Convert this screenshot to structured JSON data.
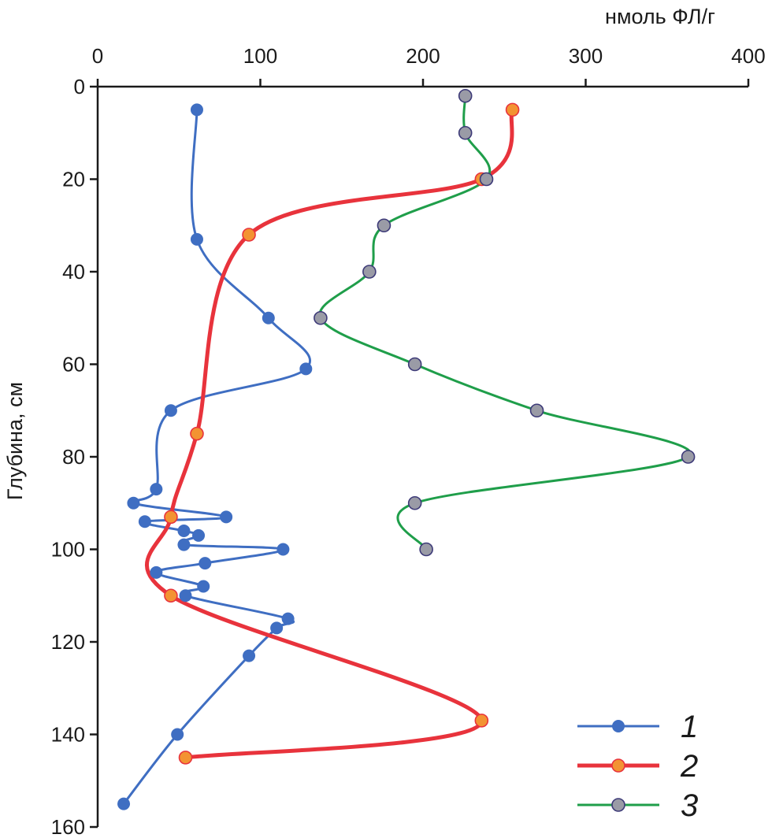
{
  "chart_data": {
    "type": "line",
    "title": "",
    "xlabel": "нмоль ФЛ/г",
    "ylabel": "Глубина, см",
    "x_axis_position": "top",
    "y_axis_inverted": true,
    "xlim": [
      0,
      400
    ],
    "ylim": [
      0,
      160
    ],
    "x_ticks": [
      0,
      100,
      200,
      300,
      400
    ],
    "y_ticks": [
      0,
      20,
      40,
      60,
      80,
      100,
      120,
      140,
      160
    ],
    "grid": false,
    "legend_position": "bottom-right",
    "series": [
      {
        "name": "1",
        "color": "#3f6ec2",
        "marker_color": "#3f6ec2",
        "smooth": true,
        "points": [
          {
            "x": 61,
            "y": 5
          },
          {
            "x": 61,
            "y": 33
          },
          {
            "x": 105,
            "y": 50
          },
          {
            "x": 128,
            "y": 61
          },
          {
            "x": 45,
            "y": 70
          },
          {
            "x": 36,
            "y": 87
          },
          {
            "x": 22,
            "y": 90
          },
          {
            "x": 79,
            "y": 93
          },
          {
            "x": 29,
            "y": 94
          },
          {
            "x": 53,
            "y": 96
          },
          {
            "x": 62,
            "y": 97
          },
          {
            "x": 53,
            "y": 99
          },
          {
            "x": 114,
            "y": 100
          },
          {
            "x": 66,
            "y": 103
          },
          {
            "x": 36,
            "y": 105
          },
          {
            "x": 65,
            "y": 108
          },
          {
            "x": 54,
            "y": 110
          },
          {
            "x": 117,
            "y": 115
          },
          {
            "x": 110,
            "y": 117
          },
          {
            "x": 93,
            "y": 123
          },
          {
            "x": 49,
            "y": 140
          },
          {
            "x": 16,
            "y": 155
          }
        ]
      },
      {
        "name": "2",
        "color": "#e8333c",
        "marker_color": "#f39332",
        "smooth": true,
        "points": [
          {
            "x": 255,
            "y": 5
          },
          {
            "x": 236,
            "y": 20
          },
          {
            "x": 93,
            "y": 32
          },
          {
            "x": 61,
            "y": 75
          },
          {
            "x": 45,
            "y": 93
          },
          {
            "x": 45,
            "y": 110
          },
          {
            "x": 236,
            "y": 137
          },
          {
            "x": 54,
            "y": 145
          }
        ]
      },
      {
        "name": "3",
        "color": "#1f9e4a",
        "marker_color": "#9a9ba6",
        "smooth": true,
        "points": [
          {
            "x": 226,
            "y": 2
          },
          {
            "x": 226,
            "y": 10
          },
          {
            "x": 239,
            "y": 20
          },
          {
            "x": 176,
            "y": 30
          },
          {
            "x": 167,
            "y": 40
          },
          {
            "x": 137,
            "y": 50
          },
          {
            "x": 195,
            "y": 60
          },
          {
            "x": 270,
            "y": 70
          },
          {
            "x": 363,
            "y": 80
          },
          {
            "x": 195,
            "y": 90
          },
          {
            "x": 202,
            "y": 100
          }
        ]
      }
    ]
  }
}
